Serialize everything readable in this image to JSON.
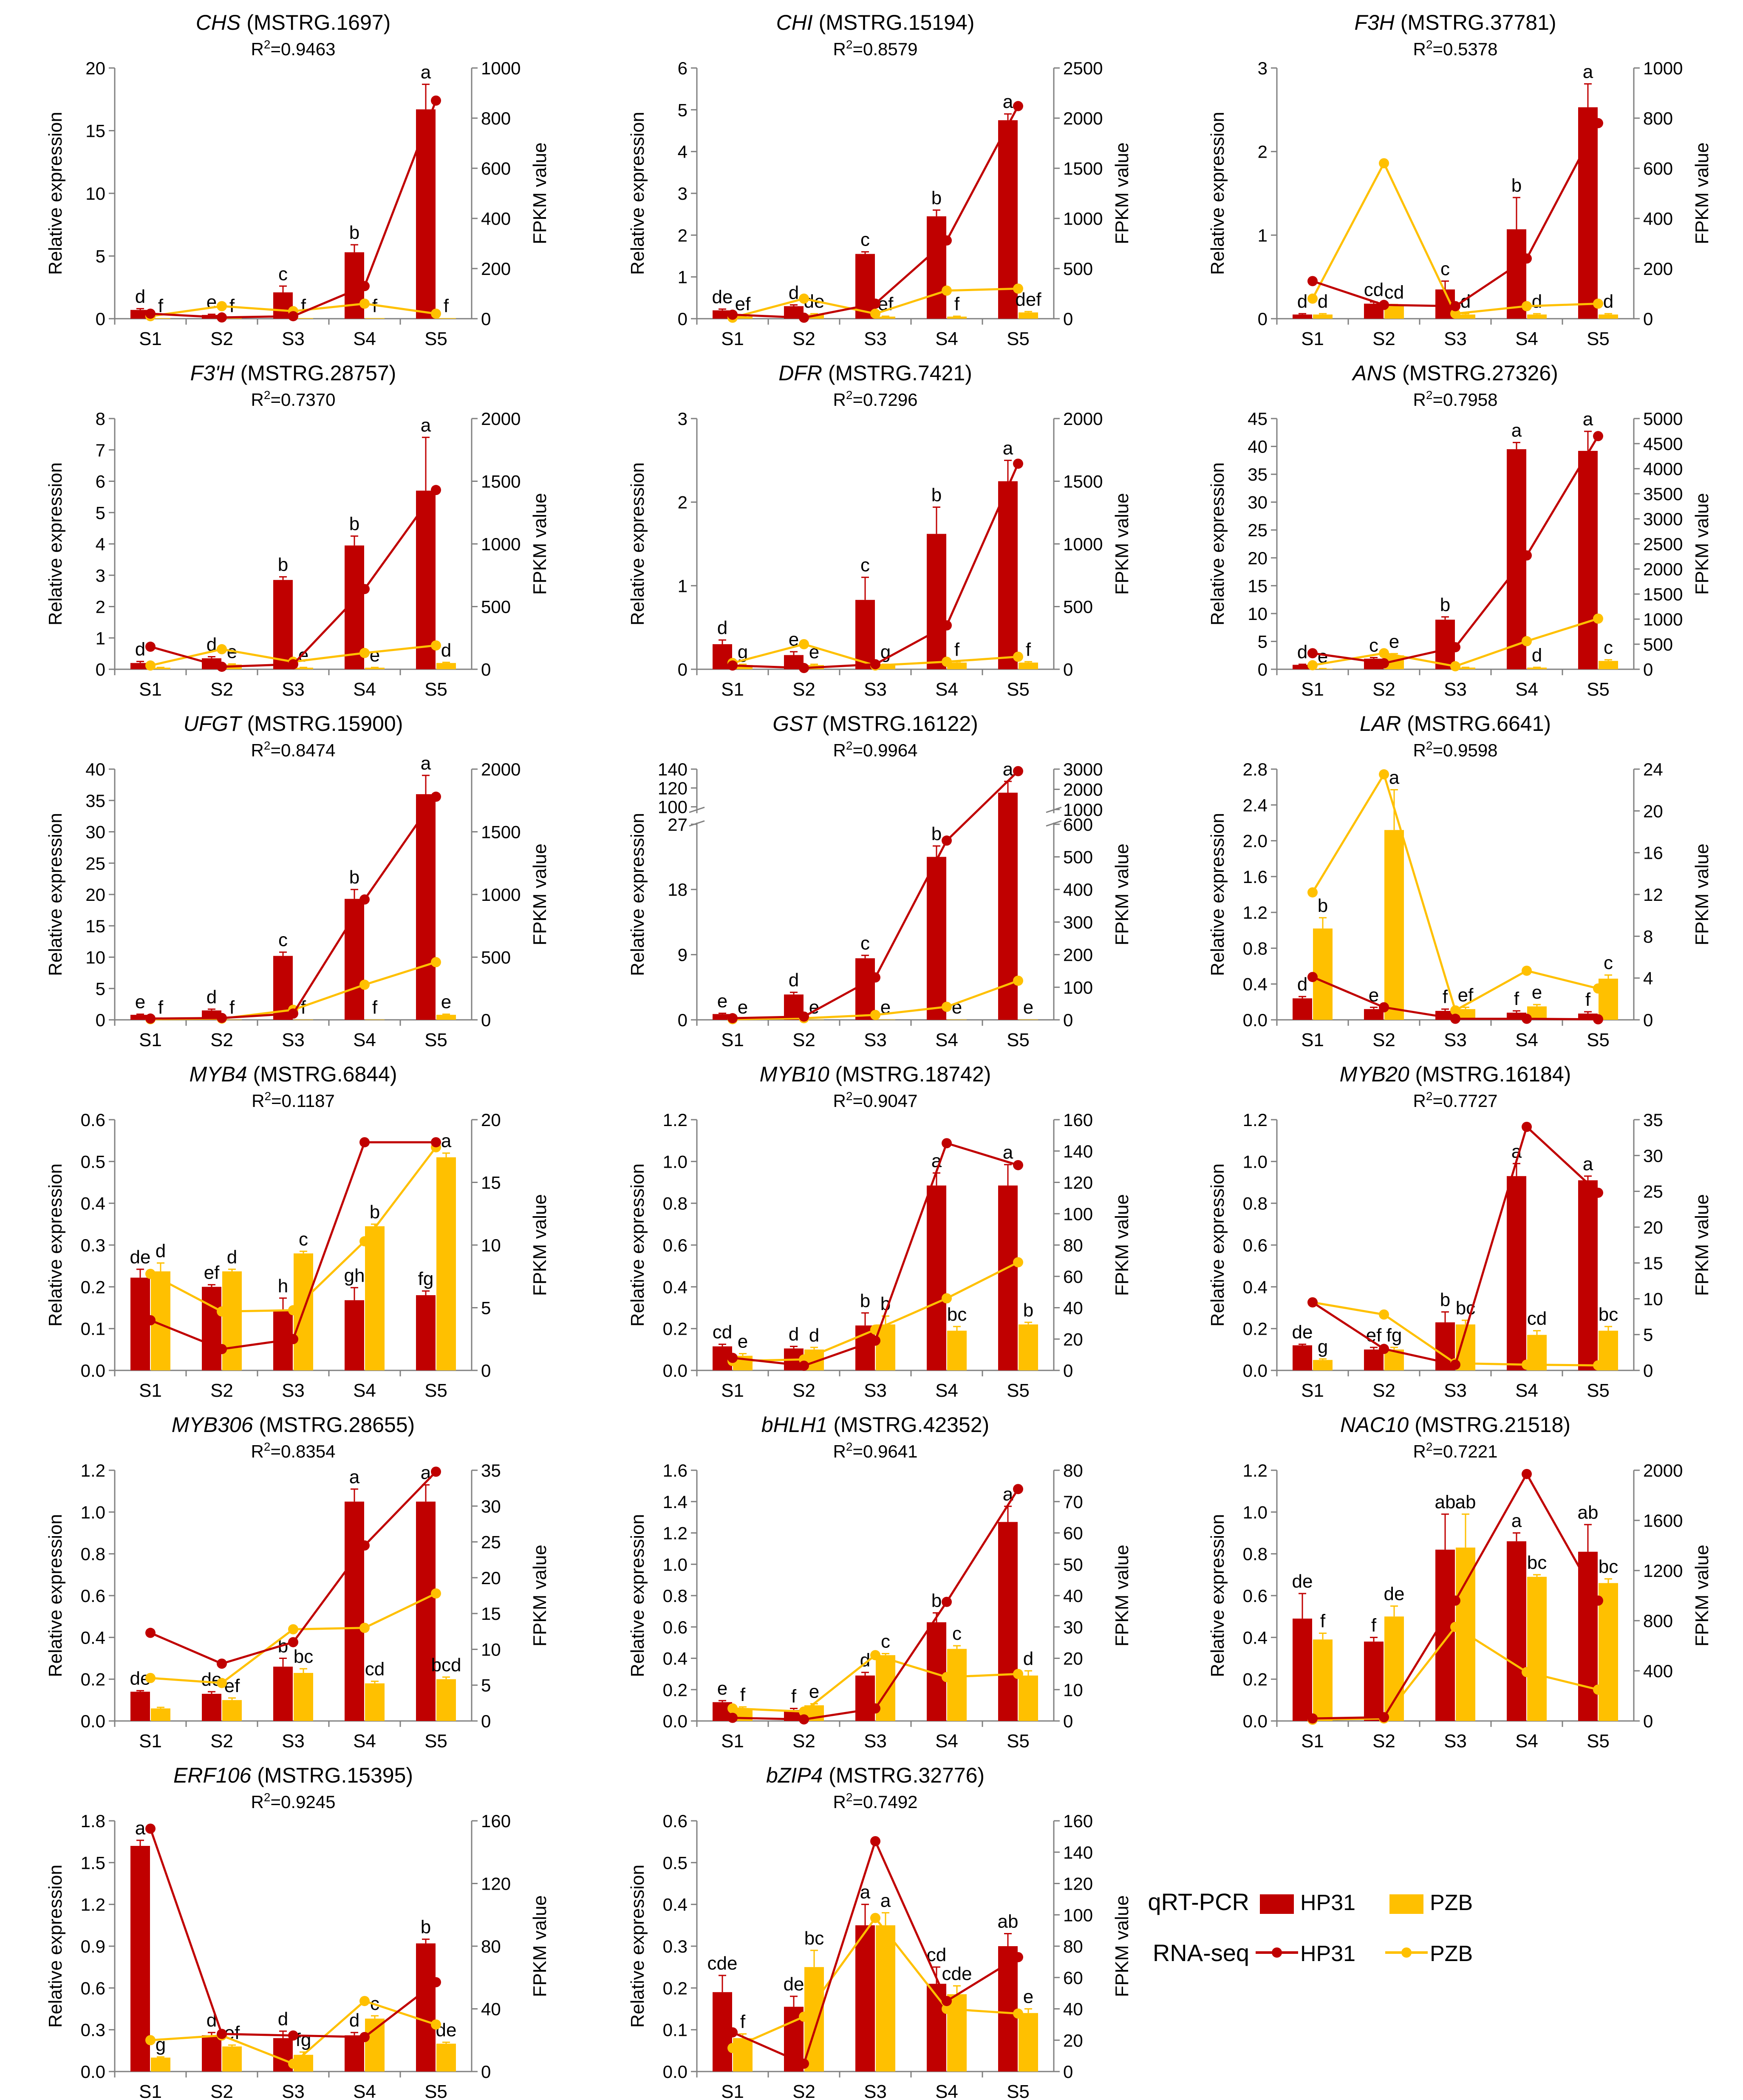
{
  "figure": {
    "x_categories": [
      "S1",
      "S2",
      "S3",
      "S4",
      "S5"
    ],
    "left_axis_label": "Relative expression",
    "right_axis_label": "FPKM value",
    "legend": {
      "qrt_label": "qRT-PCR",
      "rna_label": "RNA-seq",
      "series_hp31": "HP31",
      "series_pzb": "PZB"
    },
    "colors": {
      "hp31": "#C00000",
      "pzb": "#FFC000",
      "axis": "#808080",
      "text": "#000000"
    }
  },
  "chart_data": [
    {
      "type": "bar",
      "gene": "CHS",
      "id": " (MSTRG.1697)",
      "r2": "=0.9463",
      "ylim": [
        0,
        20
      ],
      "ystep": 5,
      "y2lim": [
        0,
        1000
      ],
      "y2step": 200,
      "hp31": [
        0.7,
        0.3,
        2.1,
        5.3,
        16.7
      ],
      "hp31_err": [
        0.1,
        0.05,
        0.5,
        0.6,
        2.0
      ],
      "pzb": [
        0.05,
        0.05,
        0.05,
        0.05,
        0.05
      ],
      "pzb_err": [
        0,
        0,
        0,
        0,
        0
      ],
      "hp31_letters": [
        "d",
        "e",
        "c",
        "b",
        "a"
      ],
      "pzb_letters": [
        "f",
        "f",
        "f",
        "f",
        "f"
      ],
      "hp31_fpkm": [
        20,
        5,
        10,
        130,
        870
      ],
      "pzb_fpkm": [
        10,
        50,
        30,
        60,
        20
      ]
    },
    {
      "type": "bar",
      "gene": "CHI",
      "id": " (MSTRG.15194)",
      "r2": "=0.8579",
      "ylim": [
        0,
        6
      ],
      "ystep": 1,
      "y2lim": [
        0,
        2500
      ],
      "y2step": 500,
      "hp31": [
        0.2,
        0.3,
        1.55,
        2.45,
        4.75
      ],
      "hp31_err": [
        0.03,
        0.03,
        0.05,
        0.15,
        0.15
      ],
      "pzb": [
        0.05,
        0.1,
        0.05,
        0.05,
        0.15
      ],
      "pzb_err": [
        0.01,
        0.02,
        0.01,
        0.01,
        0.02
      ],
      "hp31_letters": [
        "de",
        "d",
        "c",
        "b",
        "a"
      ],
      "pzb_letters": [
        "ef",
        "de",
        "ef",
        "f",
        "def"
      ],
      "hp31_fpkm": [
        40,
        10,
        150,
        780,
        2120
      ],
      "pzb_fpkm": [
        10,
        200,
        50,
        280,
        300
      ]
    },
    {
      "type": "bar",
      "gene": "F3H",
      "id": " (MSTRG.37781)",
      "r2": "=0.5378",
      "ylim": [
        0,
        3
      ],
      "ystep": 1,
      "y2lim": [
        0,
        1000
      ],
      "y2step": 200,
      "hp31": [
        0.05,
        0.18,
        0.35,
        1.07,
        2.53
      ],
      "hp31_err": [
        0.01,
        0.02,
        0.1,
        0.38,
        0.28
      ],
      "pzb": [
        0.05,
        0.15,
        0.05,
        0.05,
        0.05
      ],
      "pzb_err": [
        0.01,
        0.02,
        0.01,
        0.01,
        0.01
      ],
      "hp31_letters": [
        "d",
        "cd",
        "c",
        "b",
        "a"
      ],
      "pzb_letters": [
        "d",
        "cd",
        "d",
        "d",
        "d"
      ],
      "hp31_fpkm": [
        150,
        55,
        50,
        240,
        780
      ],
      "pzb_fpkm": [
        80,
        620,
        20,
        50,
        60
      ]
    },
    {
      "type": "bar",
      "gene": "F3'H",
      "id": " (MSTRG.28757)",
      "r2": "=0.7370",
      "ylim": [
        0,
        8
      ],
      "ystep": 1,
      "y2lim": [
        0,
        2000
      ],
      "y2step": 500,
      "hp31": [
        0.2,
        0.35,
        2.85,
        3.95,
        5.7
      ],
      "hp31_err": [
        0.05,
        0.05,
        0.1,
        0.3,
        1.7
      ],
      "pzb": [
        0.05,
        0.15,
        0.05,
        0.05,
        0.2
      ],
      "pzb_err": [
        0.01,
        0.02,
        0.01,
        0.01,
        0.02
      ],
      "hp31_letters": [
        "d",
        "d",
        "b",
        "b",
        "a"
      ],
      "pzb_letters": [
        "",
        "e",
        "e",
        "e",
        "d"
      ],
      "hp31_fpkm": [
        180,
        20,
        40,
        640,
        1430
      ],
      "pzb_fpkm": [
        30,
        160,
        60,
        130,
        190
      ]
    },
    {
      "type": "bar",
      "gene": "DFR",
      "id": " (MSTRG.7421)",
      "r2": "=0.7296",
      "ylim": [
        0,
        3
      ],
      "ystep": 1,
      "y2lim": [
        0,
        2000
      ],
      "y2step": 500,
      "hp31": [
        0.3,
        0.17,
        0.83,
        1.62,
        2.25
      ],
      "hp31_err": [
        0.05,
        0.04,
        0.27,
        0.32,
        0.25
      ],
      "pzb": [
        0.05,
        0.05,
        0.05,
        0.08,
        0.08
      ],
      "pzb_err": [
        0.01,
        0.01,
        0.01,
        0.01,
        0.01
      ],
      "hp31_letters": [
        "d",
        "e",
        "c",
        "b",
        "a"
      ],
      "pzb_letters": [
        "g",
        "e",
        "g",
        "f",
        "f"
      ],
      "hp31_fpkm": [
        30,
        10,
        40,
        350,
        1640
      ],
      "pzb_fpkm": [
        50,
        200,
        30,
        60,
        100
      ]
    },
    {
      "type": "bar",
      "gene": "ANS",
      "id": " (MSTRG.27326)",
      "r2": "=0.7958",
      "ylim": [
        0,
        45
      ],
      "ystep": 5,
      "y2lim": [
        0,
        5000
      ],
      "y2step": 500,
      "hp31": [
        0.8,
        1.9,
        8.9,
        39.5,
        39.2
      ],
      "hp31_err": [
        0.1,
        0.2,
        0.5,
        1.2,
        3.5
      ],
      "pzb": [
        0.1,
        2.5,
        0.3,
        0.3,
        1.5
      ],
      "pzb_err": [
        0.02,
        0.3,
        0.05,
        0.05,
        0.2
      ],
      "hp31_letters": [
        "d",
        "c",
        "b",
        "a",
        "a"
      ],
      "pzb_letters": [
        "e",
        "e",
        "",
        "d",
        "c"
      ],
      "hp31_fpkm": [
        320,
        120,
        440,
        2270,
        4650
      ],
      "pzb_fpkm": [
        80,
        320,
        60,
        560,
        1010
      ]
    },
    {
      "type": "bar",
      "gene": "UFGT",
      "id": " (MSTRG.15900)",
      "r2": "=0.8474",
      "ylim": [
        0,
        40
      ],
      "ystep": 5,
      "y2lim": [
        0,
        2000
      ],
      "y2step": 500,
      "hp31": [
        0.8,
        1.5,
        10.2,
        19.3,
        36.0
      ],
      "hp31_err": [
        0.1,
        0.2,
        0.6,
        1.5,
        3.0
      ],
      "pzb": [
        0.05,
        0.05,
        0.05,
        0.05,
        0.8
      ],
      "pzb_err": [
        0,
        0,
        0,
        0,
        0.1
      ],
      "hp31_letters": [
        "e",
        "d",
        "c",
        "b",
        "a"
      ],
      "pzb_letters": [
        "f",
        "f",
        "f",
        "f",
        "e"
      ],
      "hp31_fpkm": [
        10,
        15,
        50,
        960,
        1780
      ],
      "pzb_fpkm": [
        5,
        10,
        80,
        280,
        460
      ]
    },
    {
      "type": "broken",
      "gene": "GST",
      "id": " (MSTRG.16122)",
      "r2": "=0.9964",
      "ylim": [
        0,
        140
      ],
      "y2lim": [
        0,
        3000
      ],
      "lower_max": 27,
      "upper_min": 95,
      "lower_ticks": [
        0,
        9,
        18,
        27
      ],
      "upper_ticks": [
        100,
        120,
        140
      ],
      "y2_split": 600,
      "y2_lower_ticks": [
        0,
        100,
        200,
        300,
        400,
        500,
        600
      ],
      "y2_upper_ticks": [
        1000,
        2000,
        3000
      ],
      "hp31": [
        0.8,
        3.5,
        8.5,
        22.5,
        115
      ],
      "hp31_err": [
        0.1,
        0.3,
        0.4,
        1.5,
        12
      ],
      "pzb": [
        0.05,
        0.05,
        0.05,
        0.05,
        0.05
      ],
      "pzb_err": [
        0,
        0,
        0,
        0,
        0
      ],
      "hp31_letters": [
        "e",
        "d",
        "c",
        "b",
        "a"
      ],
      "pzb_letters": [
        "e",
        "e",
        "e",
        "e",
        "e"
      ],
      "hp31_fpkm": [
        5,
        10,
        130,
        550,
        2900
      ],
      "pzb_fpkm": [
        2,
        5,
        15,
        40,
        120
      ]
    },
    {
      "type": "bar",
      "gene": "LAR",
      "id": " (MSTRG.6641)",
      "r2": "=0.9598",
      "ylim": [
        0,
        2.8
      ],
      "ystep": 0.4,
      "y2lim": [
        0,
        24
      ],
      "y2step": 4,
      "hp31": [
        0.24,
        0.12,
        0.1,
        0.08,
        0.07
      ],
      "hp31_err": [
        0.02,
        0.02,
        0.02,
        0.02,
        0.02
      ],
      "pzb": [
        1.02,
        2.12,
        0.12,
        0.15,
        0.46
      ],
      "pzb_err": [
        0.12,
        0.45,
        0.02,
        0.02,
        0.04
      ],
      "hp31_letters": [
        "d",
        "e",
        "f",
        "f",
        "f"
      ],
      "pzb_letters": [
        "b",
        "a",
        "ef",
        "e",
        "c"
      ],
      "hp31_fpkm": [
        4.1,
        1.2,
        0.1,
        0.1,
        0.05
      ],
      "pzb_fpkm": [
        12.2,
        23.5,
        0.9,
        4.7,
        3.0
      ]
    },
    {
      "type": "bar",
      "gene": "MYB4",
      "id": " (MSTRG.6844)",
      "r2": "=0.1187",
      "ylim": [
        0,
        0.6
      ],
      "ystep": 0.1,
      "y2lim": [
        0,
        20
      ],
      "y2step": 5,
      "hp31": [
        0.222,
        0.2,
        0.143,
        0.168,
        0.18
      ],
      "hp31_err": [
        0.02,
        0.005,
        0.03,
        0.03,
        0.01
      ],
      "pzb": [
        0.237,
        0.237,
        0.28,
        0.345,
        0.51
      ],
      "pzb_err": [
        0.02,
        0.005,
        0.005,
        0.005,
        0.01
      ],
      "hp31_letters": [
        "de",
        "ef",
        "h",
        "gh",
        "fg"
      ],
      "pzb_letters": [
        "d",
        "d",
        "c",
        "b",
        "a"
      ],
      "hp31_fpkm": [
        4.0,
        1.7,
        2.5,
        18.2,
        18.2
      ],
      "pzb_fpkm": [
        7.7,
        4.7,
        4.8,
        10.3,
        17.8
      ]
    },
    {
      "type": "bar",
      "gene": "MYB10",
      "id": " (MSTRG.18742)",
      "r2": "=0.9047",
      "ylim": [
        0,
        1.2
      ],
      "ystep": 0.2,
      "y2lim": [
        0,
        160
      ],
      "y2step": 20,
      "hp31": [
        0.115,
        0.105,
        0.215,
        0.885,
        0.885
      ],
      "hp31_err": [
        0.01,
        0.01,
        0.06,
        0.06,
        0.1
      ],
      "pzb": [
        0.07,
        0.1,
        0.22,
        0.19,
        0.22
      ],
      "pzb_err": [
        0.01,
        0.01,
        0.04,
        0.02,
        0.01
      ],
      "hp31_letters": [
        "cd",
        "d",
        "b",
        "a",
        "a"
      ],
      "pzb_letters": [
        "e",
        "d",
        "b",
        "bc",
        "b"
      ],
      "hp31_fpkm": [
        8,
        3,
        19,
        145,
        131
      ],
      "pzb_fpkm": [
        6,
        7,
        26,
        46,
        69
      ]
    },
    {
      "type": "bar",
      "gene": "MYB20",
      "id": " (MSTRG.16184)",
      "r2": "=0.7727",
      "ylim": [
        0,
        1.2
      ],
      "ystep": 0.2,
      "y2lim": [
        0,
        35
      ],
      "y2step": 5,
      "hp31": [
        0.12,
        0.1,
        0.23,
        0.93,
        0.91
      ],
      "hp31_err": [
        0.005,
        0.01,
        0.05,
        0.06,
        0.02
      ],
      "pzb": [
        0.05,
        0.1,
        0.22,
        0.17,
        0.19
      ],
      "pzb_err": [
        0.005,
        0.01,
        0.02,
        0.02,
        0.02
      ],
      "hp31_letters": [
        "de",
        "ef",
        "b",
        "a",
        "a"
      ],
      "pzb_letters": [
        "g",
        "fg",
        "bc",
        "cd",
        "bc"
      ],
      "hp31_fpkm": [
        9.5,
        3.0,
        0.8,
        34.0,
        24.8
      ],
      "pzb_fpkm": [
        9.5,
        7.8,
        1.0,
        0.8,
        0.7
      ]
    },
    {
      "type": "bar",
      "gene": "MYB306",
      "id": " (MSTRG.28655)",
      "r2": "=0.8354",
      "ylim": [
        0,
        1.2
      ],
      "ystep": 0.2,
      "y2lim": [
        0,
        35
      ],
      "y2step": 5,
      "hp31": [
        0.14,
        0.13,
        0.26,
        1.05,
        1.05
      ],
      "hp31_err": [
        0.005,
        0.01,
        0.04,
        0.06,
        0.08
      ],
      "pzb": [
        0.06,
        0.1,
        0.23,
        0.18,
        0.2
      ],
      "pzb_err": [
        0.005,
        0.01,
        0.02,
        0.01,
        0.01
      ],
      "hp31_letters": [
        "de",
        "de",
        "b",
        "a",
        "a"
      ],
      "pzb_letters": [
        "",
        "ef",
        "bc",
        "cd",
        "bcd"
      ],
      "hp31_fpkm": [
        12.3,
        8.0,
        11.0,
        24.5,
        34.8
      ],
      "pzb_fpkm": [
        6.0,
        5.3,
        12.8,
        13.0,
        17.8
      ]
    },
    {
      "type": "bar",
      "gene": "bHLH1",
      "id": " (MSTRG.42352)",
      "r2": "=0.9641",
      "ylim": [
        0,
        1.6
      ],
      "ystep": 0.2,
      "y2lim": [
        0,
        80
      ],
      "y2step": 10,
      "hp31": [
        0.12,
        0.07,
        0.29,
        0.63,
        1.27
      ],
      "hp31_err": [
        0.01,
        0.01,
        0.02,
        0.06,
        0.1
      ],
      "pzb": [
        0.08,
        0.1,
        0.42,
        0.46,
        0.29
      ],
      "pzb_err": [
        0.01,
        0.01,
        0.01,
        0.02,
        0.03
      ],
      "hp31_letters": [
        "e",
        "f",
        "d",
        "b",
        "a"
      ],
      "pzb_letters": [
        "f",
        "e",
        "c",
        "c",
        "d"
      ],
      "hp31_fpkm": [
        1.0,
        0.5,
        4.0,
        38.0,
        74.0
      ],
      "pzb_fpkm": [
        4.0,
        3.0,
        21.0,
        14.0,
        15.0
      ]
    },
    {
      "type": "bar",
      "gene": "NAC10",
      "id": " (MSTRG.21518)",
      "r2": "=0.7221",
      "ylim": [
        0,
        1.2
      ],
      "ystep": 0.2,
      "y2lim": [
        0,
        2000
      ],
      "y2step": 400,
      "hp31": [
        0.49,
        0.38,
        0.82,
        0.86,
        0.81
      ],
      "hp31_err": [
        0.12,
        0.02,
        0.17,
        0.04,
        0.13
      ],
      "pzb": [
        0.39,
        0.5,
        0.83,
        0.69,
        0.66
      ],
      "pzb_err": [
        0.03,
        0.05,
        0.16,
        0.01,
        0.02
      ],
      "hp31_letters": [
        "de",
        "f",
        "ab",
        "a",
        "ab"
      ],
      "pzb_letters": [
        "f",
        "de",
        "ab",
        "bc",
        "bc"
      ],
      "hp31_fpkm": [
        20,
        30,
        960,
        1970,
        960
      ],
      "pzb_fpkm": [
        10,
        20,
        750,
        390,
        250
      ]
    },
    {
      "type": "bar",
      "gene": "ERF106",
      "id": " (MSTRG.15395)",
      "r2": "=0.9245",
      "ylim": [
        0,
        1.8
      ],
      "ystep": 0.3,
      "y2lim": [
        0,
        160
      ],
      "y2step": 40,
      "hp31": [
        1.62,
        0.26,
        0.24,
        0.26,
        0.92
      ],
      "hp31_err": [
        0.04,
        0.02,
        0.05,
        0.02,
        0.03
      ],
      "pzb": [
        0.1,
        0.18,
        0.12,
        0.38,
        0.2
      ],
      "pzb_err": [
        0.005,
        0.01,
        0.02,
        0.02,
        0.01
      ],
      "hp31_letters": [
        "a",
        "d",
        "d",
        "d",
        "b"
      ],
      "pzb_letters": [
        "g",
        "ef",
        "fg",
        "c",
        "de"
      ],
      "hp31_fpkm": [
        155,
        24,
        23,
        22,
        57
      ],
      "pzb_fpkm": [
        20,
        23,
        5,
        45,
        30
      ]
    },
    {
      "type": "bar",
      "gene": "bZIP4",
      "id": " (MSTRG.32776)",
      "r2": "=0.7492",
      "ylim": [
        0,
        0.6
      ],
      "ystep": 0.1,
      "y2lim": [
        0,
        160
      ],
      "y2step": 20,
      "hp31": [
        0.19,
        0.155,
        0.35,
        0.21,
        0.3
      ],
      "hp31_err": [
        0.04,
        0.025,
        0.05,
        0.04,
        0.03
      ],
      "pzb": [
        0.08,
        0.25,
        0.35,
        0.185,
        0.14
      ],
      "pzb_err": [
        0.01,
        0.04,
        0.03,
        0.02,
        0.01
      ],
      "hp31_letters": [
        "cde",
        "de",
        "a",
        "cd",
        "ab"
      ],
      "pzb_letters": [
        "f",
        "bc",
        "a",
        "cde",
        "e"
      ],
      "hp31_fpkm": [
        25,
        5,
        147,
        45,
        73
      ],
      "pzb_fpkm": [
        15,
        35,
        98,
        40,
        37
      ]
    }
  ]
}
